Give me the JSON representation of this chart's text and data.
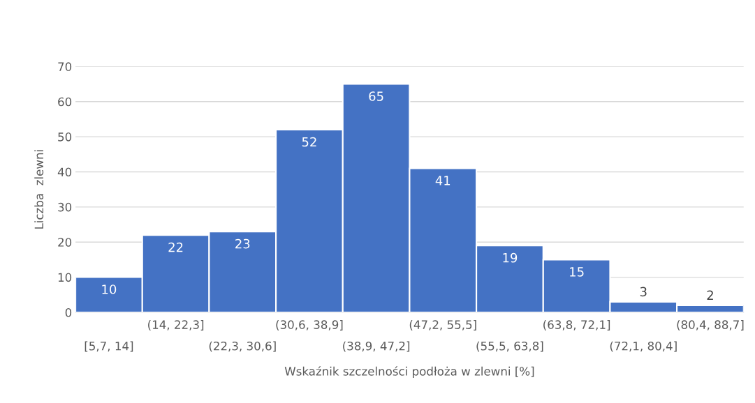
{
  "chart_data": {
    "type": "bar",
    "xlabel": "Wskaźnik szczelności podłoża w zlewni [%]",
    "ylabel": "Liczba  zlewni",
    "categories": [
      "[5,7, 14]",
      "(14, 22,3]",
      "(22,3, 30,6]",
      "(30,6, 38,9]",
      "(38,9, 47,2]",
      "(47,2, 55,5]",
      "(55,5, 63,8]",
      "(63,8, 72,1]",
      "(72,1, 80,4]",
      "(80,4, 88,7]"
    ],
    "values": [
      10,
      22,
      23,
      52,
      65,
      41,
      19,
      15,
      3,
      2
    ],
    "color": "#4472c4",
    "ylim": [
      0,
      70
    ],
    "yticks": [
      0,
      10,
      20,
      30,
      40,
      50,
      60,
      70
    ],
    "grid": "y",
    "data_labels": true
  }
}
